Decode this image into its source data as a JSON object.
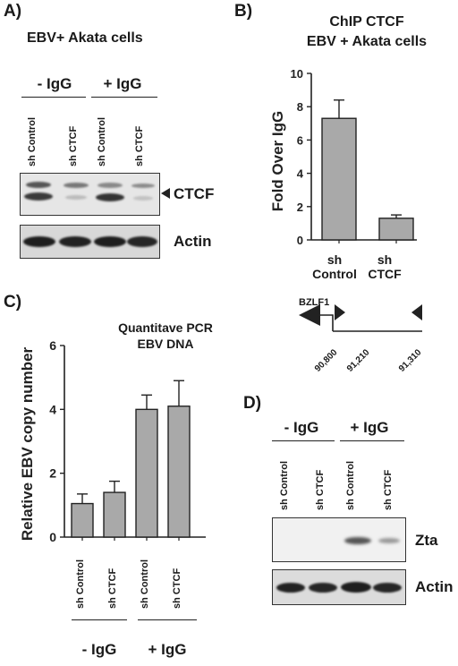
{
  "figure": {
    "panels": {
      "a": {
        "label": "A)",
        "title": "EBV+ Akata cells",
        "groups": [
          "- IgG",
          "+ IgG"
        ],
        "lanes": [
          "sh Control",
          "sh CTCF",
          "sh Control",
          "sh CTCF"
        ],
        "blot_labels": {
          "ctcf": "CTCF",
          "actin": "Actin"
        },
        "arrow_glyph": "➤"
      },
      "b": {
        "label": "B)",
        "title_line1": "ChIP CTCF",
        "title_line2": "EBV + Akata cells",
        "xlabels": [
          [
            "sh",
            "Control"
          ],
          [
            "sh",
            "CTCF"
          ]
        ],
        "gene": "BZLF1",
        "coords": [
          "90,800",
          "91,210",
          "91,310"
        ]
      },
      "c": {
        "label": "C)",
        "title_line1": "Quantitave PCR",
        "title_line2": "EBV DNA",
        "lanes": [
          "sh Control",
          "sh CTCF",
          "sh Control",
          "sh CTCF"
        ],
        "groups": [
          "- IgG",
          "+ IgG"
        ]
      },
      "d": {
        "label": "D)",
        "groups": [
          "- IgG",
          "+ IgG"
        ],
        "lanes": [
          "sh Control",
          "sh CTCF",
          "sh Control",
          "sh CTCF"
        ],
        "blot_labels": {
          "zta": "Zta",
          "actin": "Actin"
        }
      }
    }
  },
  "chart_data": [
    {
      "type": "bar",
      "panel": "B",
      "title": "ChIP CTCF EBV + Akata cells",
      "ylabel": "Fold Over IgG",
      "categories": [
        "sh Control",
        "sh CTCF"
      ],
      "values": [
        7.3,
        1.3
      ],
      "errors": [
        1.1,
        0.2
      ],
      "ylim": [
        0,
        10
      ],
      "yticks": [
        0,
        2,
        4,
        6,
        8,
        10
      ],
      "bar_color": "#a9a9a9"
    },
    {
      "type": "bar",
      "panel": "C",
      "title": "Quantitave PCR EBV DNA",
      "ylabel": "Relative EBV copy number",
      "categories": [
        "sh Control",
        "sh CTCF",
        "sh Control",
        "sh CTCF"
      ],
      "groups": [
        "- IgG",
        "- IgG",
        "+ IgG",
        "+ IgG"
      ],
      "values": [
        1.05,
        1.4,
        4.0,
        4.1
      ],
      "errors": [
        0.3,
        0.35,
        0.45,
        0.8
      ],
      "ylim": [
        0,
        6
      ],
      "yticks": [
        0,
        2,
        4,
        6
      ],
      "bar_color": "#a9a9a9"
    }
  ]
}
